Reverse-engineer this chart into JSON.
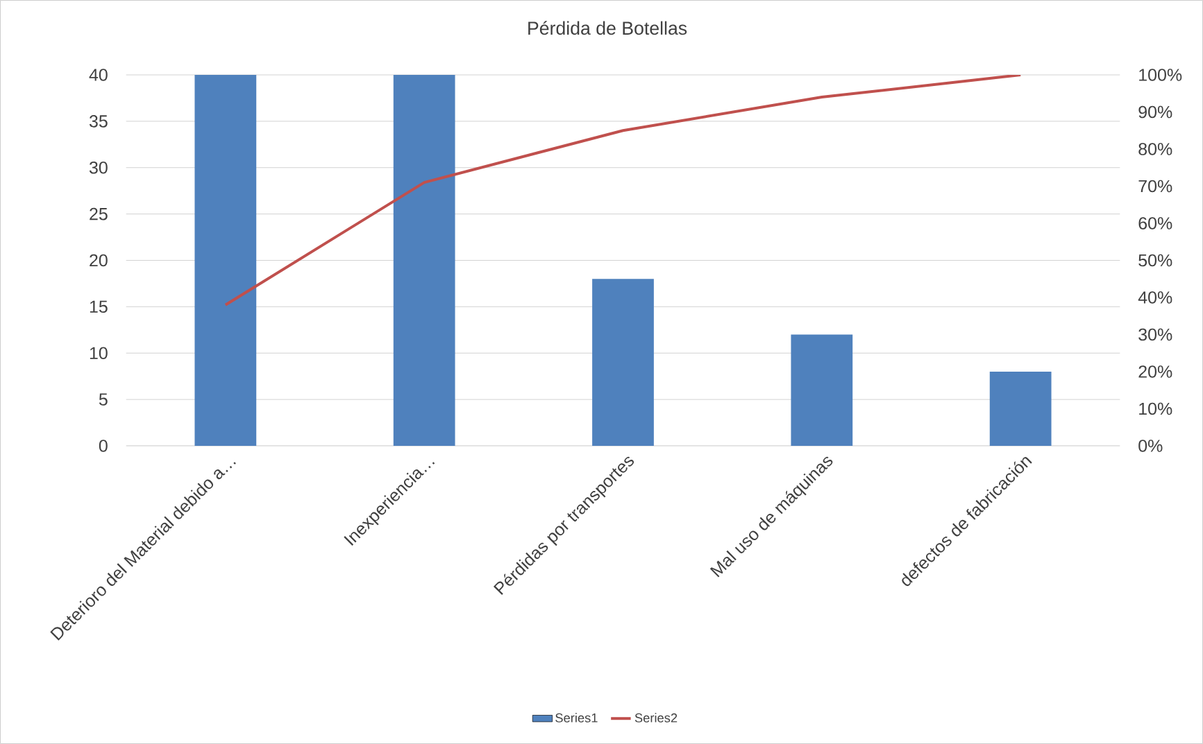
{
  "chart_data": {
    "type": "bar",
    "title": "Pérdida de Botellas",
    "categories": [
      "Deterioro del Material debido a…",
      "Inexperiencia…",
      "Pérdidas por transportes",
      "Mal uso de máquinas",
      "defectos de fabricación"
    ],
    "series": [
      {
        "name": "Series1",
        "color": "#4f81bd",
        "values": [
          40,
          40,
          18,
          12,
          8
        ]
      },
      {
        "name": "Series2",
        "type": "line",
        "axis": "y2",
        "color": "#c0504d",
        "values": [
          38,
          71,
          85,
          94,
          100
        ]
      }
    ],
    "ylim": [
      0,
      40
    ],
    "yticks": [
      0,
      5,
      10,
      15,
      20,
      25,
      30,
      35,
      40
    ],
    "y2lim": [
      0,
      100
    ],
    "y2ticks": [
      {
        "value": 0,
        "label": "0%"
      },
      {
        "value": 10,
        "label": "10%"
      },
      {
        "value": 20,
        "label": "20%"
      },
      {
        "value": 30,
        "label": "30%"
      },
      {
        "value": 40,
        "label": "40%"
      },
      {
        "value": 50,
        "label": "50%"
      },
      {
        "value": 60,
        "label": "60%"
      },
      {
        "value": 70,
        "label": "70%"
      },
      {
        "value": 80,
        "label": "80%"
      },
      {
        "value": 90,
        "label": "90%"
      },
      {
        "value": 100,
        "label": "100%"
      }
    ],
    "grid": "y",
    "legend": "bottom",
    "marker": "none",
    "line_style": "solid"
  }
}
